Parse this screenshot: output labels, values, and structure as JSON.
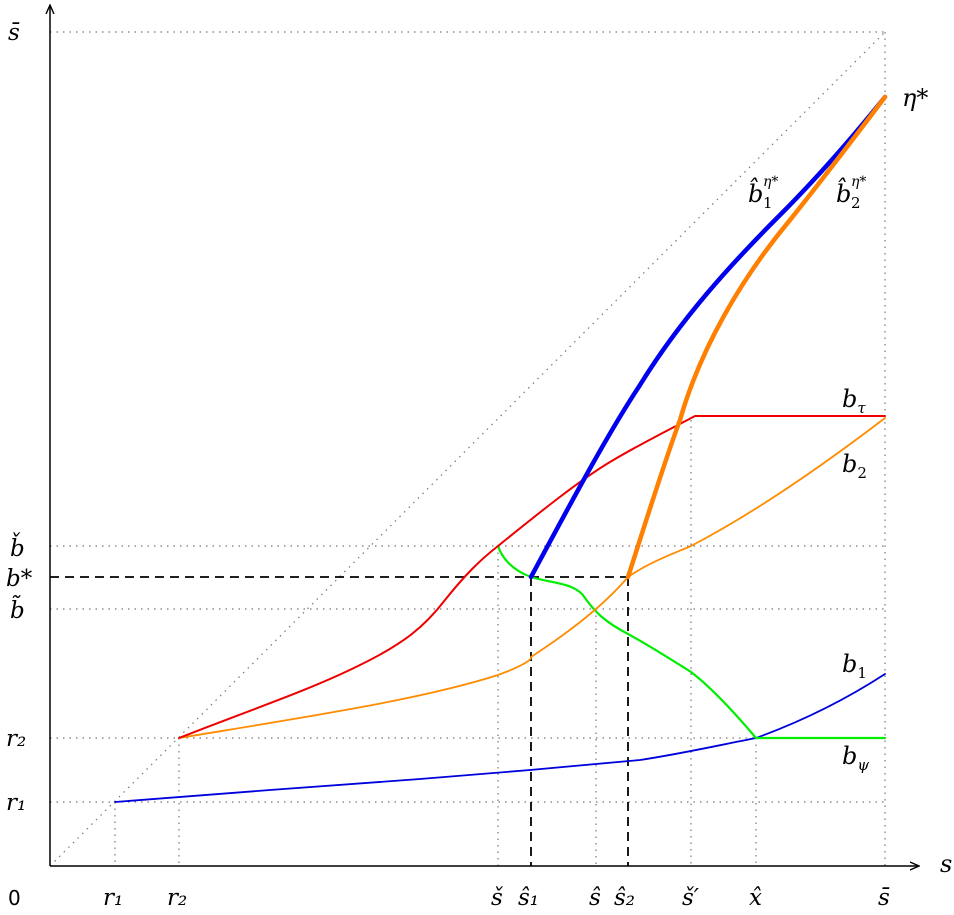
{
  "axes": {
    "x_label": "s",
    "origin_label": "0",
    "x_ticks": {
      "r1": "r₁",
      "r2": "r₂",
      "s_check": "š",
      "s_hat_1": "ŝ₁",
      "s_hat": "ŝ",
      "s_hat_2": "ŝ₂",
      "s_check_prime": "š′",
      "x_hat": "x̂",
      "s_bar": "s̄"
    },
    "y_ticks": {
      "s_bar": "s̄",
      "b_check": "b̌",
      "b_star": "b*",
      "b_tilde": "b̃",
      "r2": "r₂",
      "r1": "r₁"
    }
  },
  "curves": {
    "eta_star": "η*",
    "b_hat_1": {
      "base": "b̂",
      "sub": "1",
      "sup": "η*",
      "color": "#0000ee"
    },
    "b_hat_2": {
      "base": "b̂",
      "sub": "2",
      "sup": "η*",
      "color": "#ff8000"
    },
    "b_tau": {
      "base": "b",
      "sub": "τ",
      "color": "#ee0000"
    },
    "b_2": {
      "base": "b",
      "sub": "2",
      "color": "#ff8c00"
    },
    "b_1": {
      "base": "b",
      "sub": "1",
      "color": "#0000dd"
    },
    "b_psi": {
      "base": "b",
      "sub": "ψ",
      "color": "#00ee00"
    }
  }
}
